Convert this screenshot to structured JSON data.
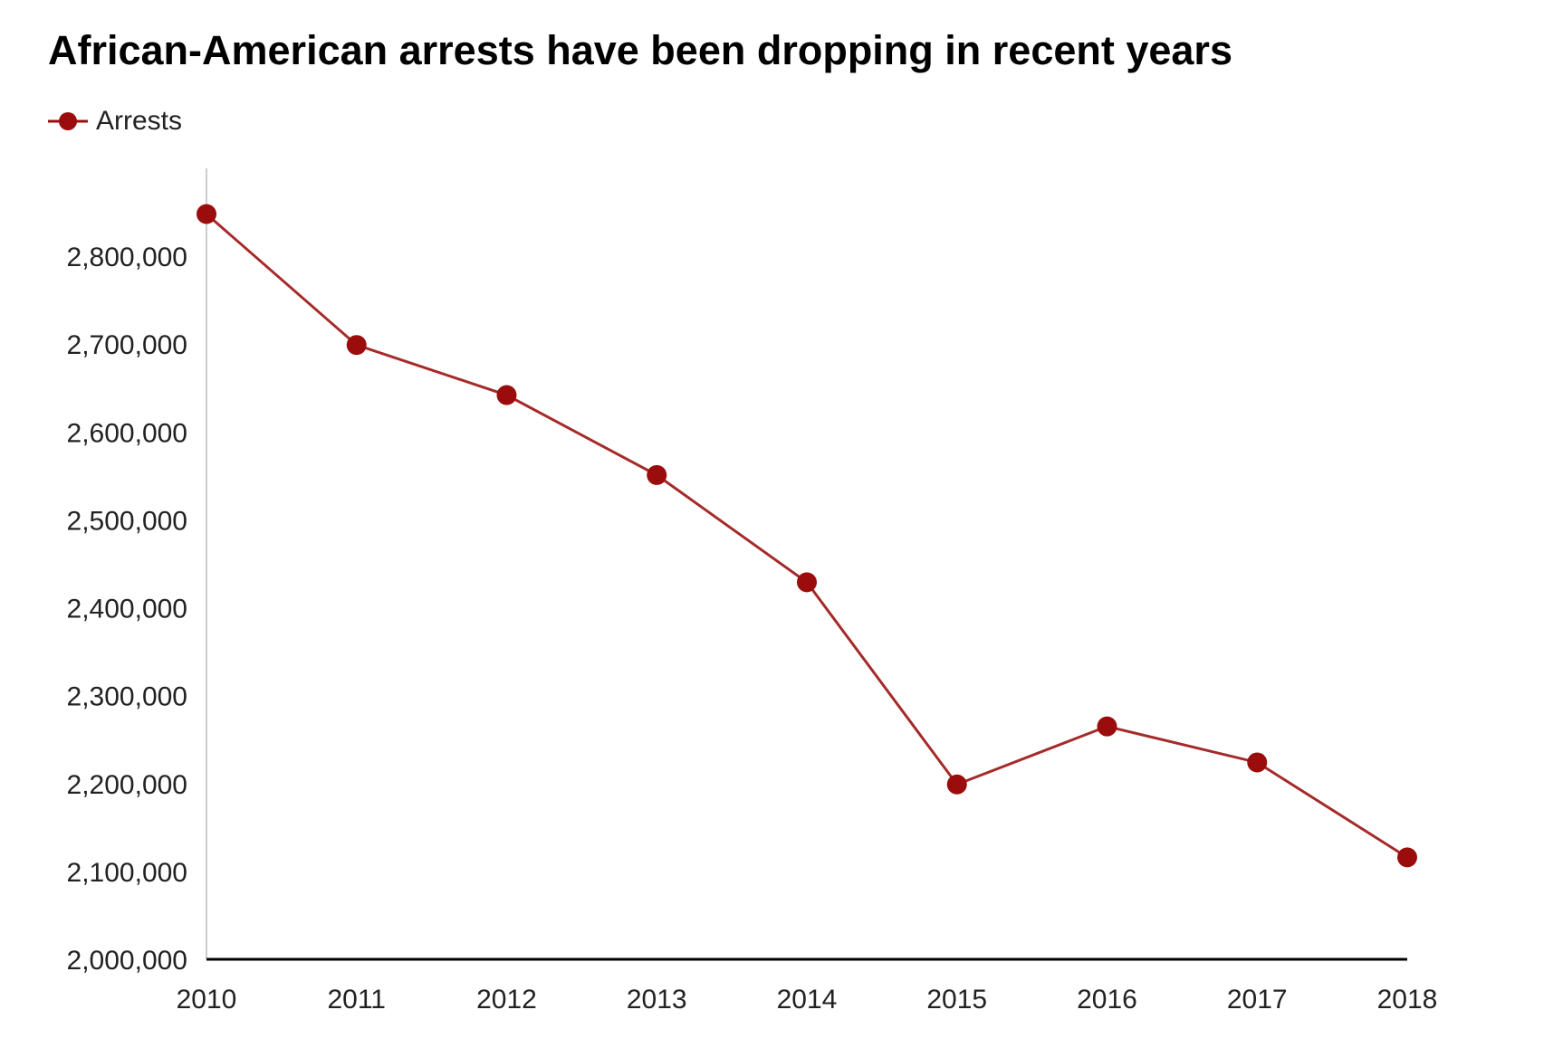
{
  "chart_data": {
    "type": "line",
    "title": "African-American arrests have been dropping in recent years",
    "xlabel": "",
    "ylabel": "",
    "categories": [
      "2010",
      "2011",
      "2012",
      "2013",
      "2014",
      "2015",
      "2016",
      "2017",
      "2018"
    ],
    "series": [
      {
        "name": "Arrests",
        "color": "#9b0d0d",
        "values": [
          2848000,
          2699000,
          2642000,
          2551000,
          2429000,
          2199000,
          2265000,
          2224000,
          2116000
        ]
      }
    ],
    "ylim": [
      2000000,
      2900000
    ],
    "yticks": [
      2000000,
      2100000,
      2200000,
      2300000,
      2400000,
      2500000,
      2600000,
      2700000,
      2800000
    ],
    "ytick_labels": [
      "2,000,000",
      "2,100,000",
      "2,200,000",
      "2,300,000",
      "2,400,000",
      "2,500,000",
      "2,600,000",
      "2,700,000",
      "2,800,000"
    ],
    "legend": {
      "position": "top-left",
      "label": "Arrests"
    },
    "grid": false
  }
}
